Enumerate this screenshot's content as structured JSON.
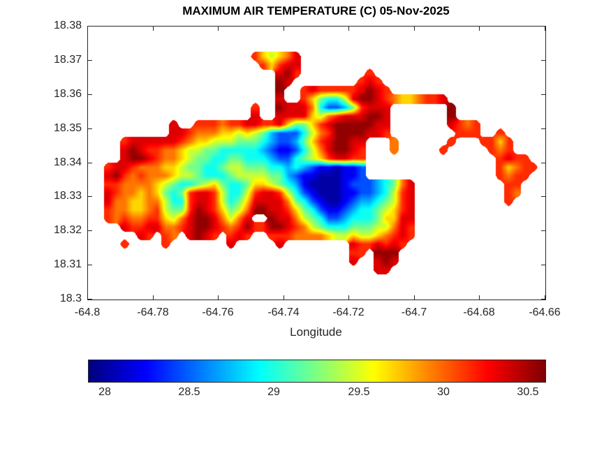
{
  "figure": {
    "title": "MAXIMUM AIR TEMPERATURE (C) 05-Nov-2025",
    "xlabel": "Longitude",
    "background_color": "#ffffff",
    "axis_color": "#262626",
    "title_color": "#000000"
  },
  "chart_data": {
    "type": "heatmap",
    "title": "MAXIMUM AIR TEMPERATURE (C) 05-Nov-2025",
    "xlabel": "Longitude",
    "ylabel": "",
    "xlim": [
      -64.8,
      -64.66
    ],
    "ylim": [
      18.3,
      18.38
    ],
    "x_ticks": [
      -64.8,
      -64.78,
      -64.76,
      -64.74,
      -64.72,
      -64.7,
      -64.68,
      -64.66
    ],
    "x_tick_labels": [
      "-64.8",
      "-64.78",
      "-64.76",
      "-64.74",
      "-64.72",
      "-64.7",
      "-64.68",
      "-64.66"
    ],
    "y_ticks": [
      18.3,
      18.31,
      18.32,
      18.33,
      18.34,
      18.35,
      18.36,
      18.37,
      18.38
    ],
    "y_tick_labels": [
      "18.3",
      "18.31",
      "18.32",
      "18.33",
      "18.34",
      "18.35",
      "18.36",
      "18.37",
      "18.38"
    ],
    "grid_lines": false,
    "colormap": "jet",
    "clim": [
      27.9,
      30.6
    ],
    "colorbar": {
      "orientation": "horizontal",
      "ticks": [
        28,
        28.5,
        29,
        29.5,
        30,
        30.5
      ],
      "tick_labels": [
        "28",
        "28.5",
        "29",
        "29.5",
        "30",
        "30.5"
      ]
    },
    "grid": {
      "comment": "Temperature field (deg C), row 0 = lat 18.38 (north), col 0 = lon -64.80 (west). '.' = sea (no data). Cell size 0.0025 deg.",
      "ncols": 56,
      "nrows": 32,
      "x0": -64.8,
      "x1": -64.66,
      "y0": 18.38,
      "y1": 18.3,
      "encoding": {
        "sea": ".",
        "levels": {
          "0": 28.0,
          "1": 28.2,
          "2": 28.45,
          "3": 28.7,
          "4": 28.95,
          "5": 29.2,
          "6": 29.45,
          "7": 29.7,
          "8": 29.95,
          "9": 30.15,
          "a": 30.35,
          "b": 30.55
        }
      },
      "rows": [
        "........................................................",
        "........................................................",
        "........................................................",
        "....................97678a..............................",
        ".....................979aa..............................",
        ".......................ab9........9.....................",
        ".......................ba........9a9....................",
        ".......................b..9a99999aba9...................",
        ".......................a..975446abba9877899a............",
        "....................9..baaa8422359aaa.......b...........",
        "....................a..aaaa7689aaabba.......b...........",
        "..........a..999899aa99a75579abbbbbaa.......a989........",
        "..........aa988877676532224689bbbbaa9........999..9.....",
        "....9aaaaaa987766655543223579abbaa...8......9...9979....",
        "....aba9988766554444432112468abba9...8.....9.....989....",
        "....abba9887655445544432245679aa99................9a99..",
        "..9aa98887765544566555443432110112................97899.",
        "..ab989888766544456666553211000112................9899..",
        "..9988887654456754457765431000012223458a...........99...",
        "..a9887875459aa964469aa9642100011223469a...........98...",
        "..a8877886449aa96457aaaa854210012334569a...........9....",
        "..98877896559ba97568bbaa975421123445679a................",
        "..9898899768abba868a..baa8654223444577aa................",
        "....a99aa889abba989b99bba9865444555668a9................",
        "......a9.98.aba9.9a9..9998888766766789a9................",
        "....9....9.......a.....a........a99a9a9.................",
        "................................99.bbb..................",
        "................................a..aba..................",
        "...................................aa...................",
        "........................................................",
        "........................................................",
        "........................................................"
      ]
    }
  }
}
